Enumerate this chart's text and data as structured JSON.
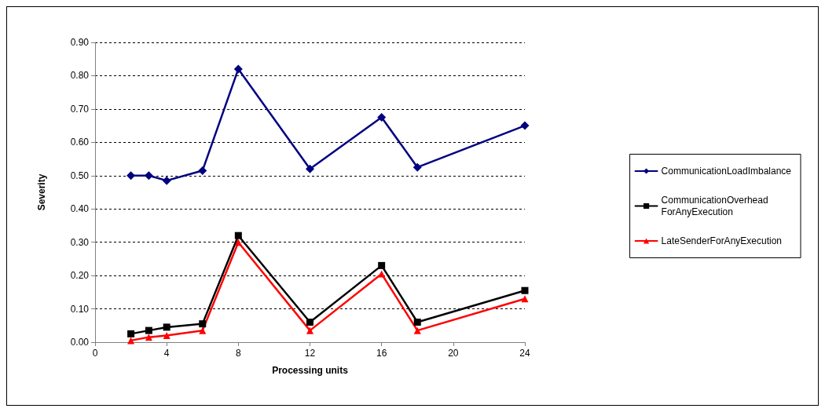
{
  "chart_data": {
    "type": "line",
    "xlabel": "Processing units",
    "ylabel": "Severity",
    "x": [
      2,
      3,
      4,
      6,
      8,
      12,
      16,
      18,
      24
    ],
    "series": [
      {
        "name": "CommunicationLoadImbalance",
        "color": "#000080",
        "marker": "diamond",
        "values": [
          0.5,
          0.5,
          0.485,
          0.515,
          0.82,
          0.52,
          0.675,
          0.525,
          0.65
        ]
      },
      {
        "name": "CommunicationOverhead\nForAnyExecution",
        "color": "#000000",
        "marker": "square",
        "values": [
          0.025,
          0.035,
          0.045,
          0.055,
          0.32,
          0.06,
          0.23,
          0.06,
          0.155
        ]
      },
      {
        "name": "LateSenderForAnyExecution",
        "color": "#ff0000",
        "marker": "triangle",
        "values": [
          0.005,
          0.015,
          0.02,
          0.035,
          0.3,
          0.035,
          0.205,
          0.035,
          0.13
        ]
      }
    ],
    "xlim": [
      0,
      24
    ],
    "xticks": [
      0,
      4,
      8,
      12,
      16,
      20,
      24
    ],
    "ylim": [
      0,
      0.9
    ],
    "yticks": [
      {
        "value": 0,
        "label": "0.00"
      },
      {
        "value": 0.1,
        "label": "0.10"
      },
      {
        "value": 0.2,
        "label": "0.20"
      },
      {
        "value": 0.3,
        "label": "0.30"
      },
      {
        "value": 0.4,
        "label": "0.40"
      },
      {
        "value": 0.5,
        "label": "0.50"
      },
      {
        "value": 0.6,
        "label": "0.60"
      },
      {
        "value": 0.7,
        "label": "0.70"
      },
      {
        "value": 0.8,
        "label": "0.80"
      },
      {
        "value": 0.9,
        "label": "0.90"
      }
    ],
    "grid": "y",
    "legend": "right",
    "line_style": "solid"
  }
}
